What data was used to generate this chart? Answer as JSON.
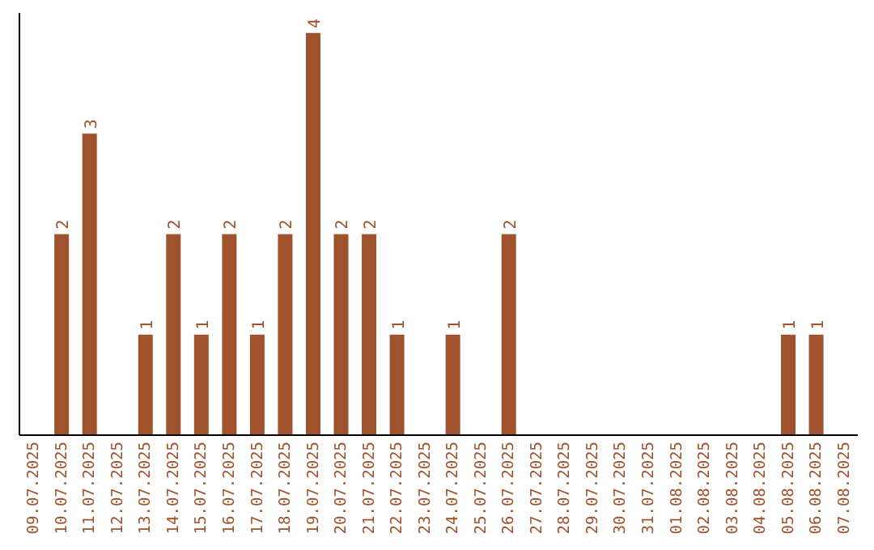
{
  "chart_data": {
    "type": "bar",
    "categories": [
      "09.07.2025",
      "10.07.2025",
      "11.07.2025",
      "12.07.2025",
      "13.07.2025",
      "14.07.2025",
      "15.07.2025",
      "16.07.2025",
      "17.07.2025",
      "18.07.2025",
      "19.07.2025",
      "20.07.2025",
      "21.07.2025",
      "22.07.2025",
      "23.07.2025",
      "24.07.2025",
      "25.07.2025",
      "26.07.2025",
      "27.07.2025",
      "28.07.2025",
      "29.07.2025",
      "30.07.2025",
      "31.07.2025",
      "01.08.2025",
      "02.08.2025",
      "03.08.2025",
      "04.08.2025",
      "05.08.2025",
      "06.08.2025",
      "07.08.2025"
    ],
    "values": [
      0,
      2,
      3,
      0,
      1,
      2,
      1,
      2,
      1,
      2,
      4,
      2,
      2,
      1,
      0,
      1,
      0,
      2,
      0,
      0,
      0,
      0,
      0,
      0,
      0,
      0,
      0,
      1,
      1,
      0
    ],
    "value_labels": [
      null,
      "2",
      "3",
      null,
      "1",
      "2",
      "1",
      "2",
      "1",
      "2",
      "4",
      "2",
      "2",
      "1",
      null,
      "1",
      null,
      "2",
      null,
      null,
      null,
      null,
      null,
      null,
      null,
      null,
      null,
      "1",
      "1",
      null
    ],
    "color": "#a0522d",
    "ylim": [
      0,
      4.2
    ],
    "tick_labels": "x"
  }
}
